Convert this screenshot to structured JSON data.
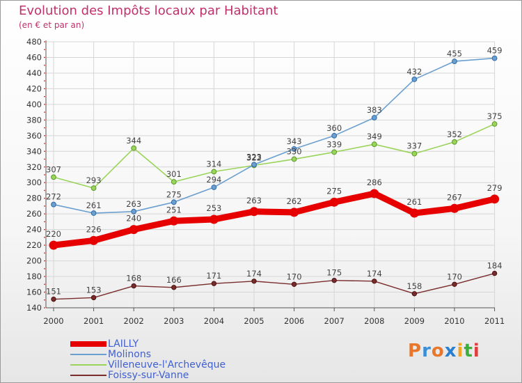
{
  "title": "Evolution des Impôts locaux par Habitant",
  "subtitle": "(en € et par an)",
  "logo": {
    "letters": [
      "P",
      "r",
      "o",
      "x",
      "i",
      "t",
      "i"
    ],
    "colors": [
      "#e8762b",
      "#3a8fd8",
      "#e8762b",
      "#2a7fcf",
      "#f4a41d",
      "#3cae3c",
      "#e23d3d"
    ]
  },
  "chart_data": {
    "type": "line",
    "x": [
      "2000",
      "2001",
      "2002",
      "2003",
      "2004",
      "2005",
      "2006",
      "2007",
      "2008",
      "2009",
      "2010",
      "2011"
    ],
    "ylim": [
      140,
      480
    ],
    "yticks": [
      140,
      160,
      180,
      200,
      220,
      240,
      260,
      280,
      300,
      320,
      340,
      360,
      380,
      400,
      420,
      440,
      460,
      480
    ],
    "grid": true,
    "legend_position": "bottom-left",
    "series": [
      {
        "name": "LAILLY",
        "color": "#e60000",
        "values": [
          220,
          226,
          240,
          251,
          253,
          263,
          262,
          275,
          286,
          261,
          267,
          279
        ]
      },
      {
        "name": "Molinons",
        "color": "#6a9fd0",
        "values": [
          272,
          261,
          263,
          275,
          294,
          323,
          343,
          360,
          383,
          432,
          455,
          459
        ]
      },
      {
        "name": "Villeneuve-l'Archevêque",
        "color": "#9ad45a",
        "values": [
          307,
          293,
          344,
          301,
          314,
          322,
          330,
          339,
          349,
          337,
          352,
          375
        ]
      },
      {
        "name": "Foissy-sur-Vanne",
        "color": "#7a2c2c",
        "values": [
          151,
          153,
          168,
          166,
          171,
          174,
          170,
          175,
          174,
          158,
          170,
          184
        ]
      }
    ]
  }
}
